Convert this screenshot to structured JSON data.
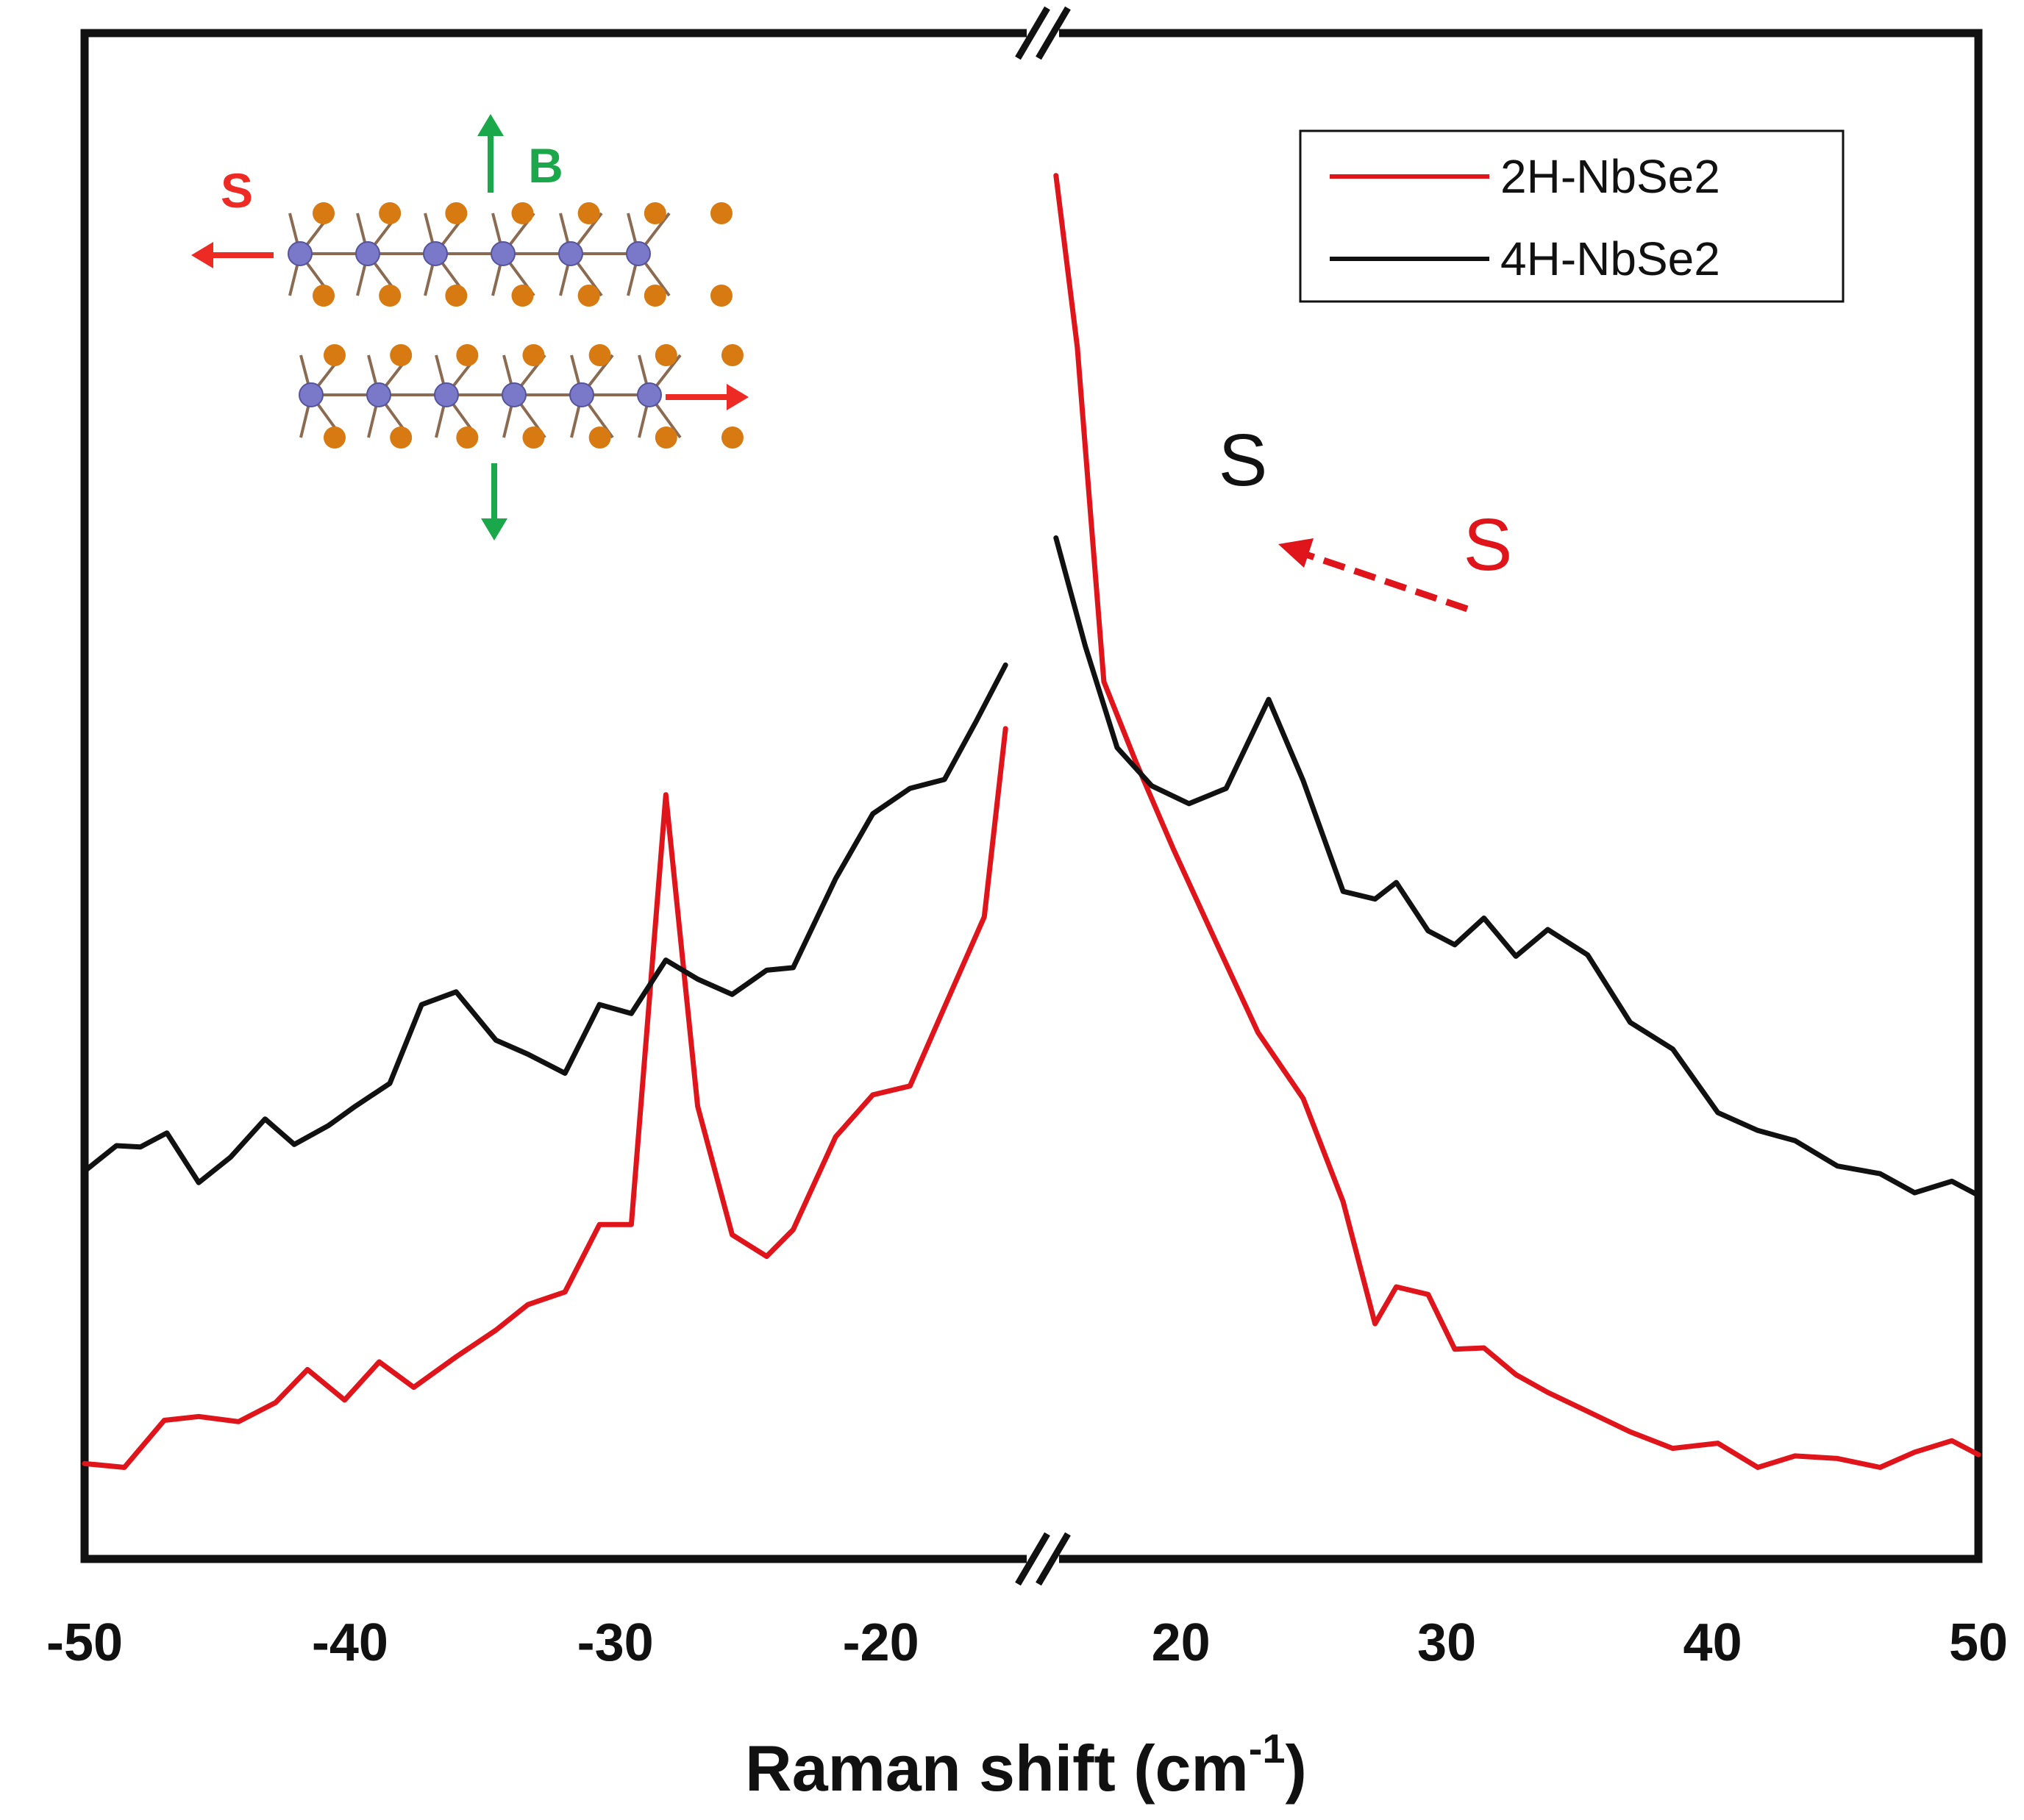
{
  "chart_data": {
    "type": "line",
    "xlabel": "Raman shift (cm",
    "xlabel_sup": "-1",
    "xlabel_close": ")",
    "xlim": [
      -50,
      50
    ],
    "axis_break": [
      -15,
      15
    ],
    "tick_labels": [
      "-50",
      "-40",
      "-30",
      "-20",
      "20",
      "30",
      "40",
      "50"
    ],
    "tick_values": [
      -50,
      -40,
      -30,
      -20,
      20,
      30,
      40,
      50
    ],
    "grid": false,
    "legend_position": "top-right",
    "y_ticks_shown": false,
    "series": [
      {
        "name": "2H-NbSe2",
        "color": "#e0141b",
        "left_x": [
          -50,
          -48.5,
          -47,
          -45.7,
          -44.2,
          -42.8,
          -41.6,
          -40.2,
          -38.9,
          -37.6,
          -36,
          -34.5,
          -33.3,
          -31.9,
          -30.6,
          -29.4,
          -28.1,
          -26.9,
          -25.6,
          -24.3,
          -23.3,
          -21.7,
          -20.3,
          -18.9,
          -17.6,
          -16.1,
          -15.3
        ],
        "left_y": [
          7.5,
          7.2,
          10.9,
          11.2,
          10.8,
          12.3,
          14.9,
          12.5,
          15.5,
          13.5,
          15.9,
          18,
          20,
          21,
          26.3,
          26.3,
          60.1,
          35.6,
          25.5,
          23.8,
          25.9,
          33.2,
          36.5,
          37.2,
          43.4,
          50.5,
          65.3
        ],
        "right_x": [
          15.3,
          16.1,
          17.1,
          18.3,
          19.7,
          21.3,
          22.9,
          24.6,
          26.1,
          27.3,
          28.1,
          29.3,
          30.3,
          31.4,
          32.6,
          33.8,
          35.3,
          36.9,
          38.5,
          40.2,
          41.7,
          43.1,
          44.7,
          46.3,
          47.6,
          49,
          50
        ],
        "right_y": [
          108.8,
          95.3,
          69,
          62.7,
          55.9,
          48.6,
          41.4,
          36.2,
          28.1,
          18.5,
          21.4,
          20.8,
          16.5,
          16.6,
          14.5,
          13.1,
          11.6,
          10,
          8.7,
          9.1,
          7.2,
          8.1,
          7.9,
          7.2,
          8.4,
          9.3,
          8.2
        ]
      },
      {
        "name": "4H-NbSe2",
        "color": "#111111",
        "left_x": [
          -50,
          -48.8,
          -47.9,
          -46.9,
          -45.7,
          -44.5,
          -43.2,
          -42.1,
          -40.8,
          -39.8,
          -38.5,
          -37.3,
          -36,
          -34.5,
          -33.3,
          -31.9,
          -30.6,
          -29.4,
          -28.1,
          -26.9,
          -25.6,
          -24.3,
          -23.3,
          -21.7,
          -20.3,
          -18.9,
          -17.6,
          -16.4,
          -15.3
        ],
        "left_y": [
          30.5,
          32.5,
          32.4,
          33.5,
          29.6,
          31.6,
          34.6,
          32.6,
          34.1,
          35.6,
          37.4,
          43.6,
          44.6,
          40.8,
          39.7,
          38.2,
          43.6,
          42.9,
          47.1,
          45.6,
          44.4,
          46.3,
          46.5,
          53.5,
          58.6,
          60.6,
          61.3,
          65.9,
          70.3
        ],
        "right_x": [
          15.3,
          16.4,
          17.6,
          18.9,
          20.3,
          21.7,
          23.3,
          24.6,
          26.1,
          27.3,
          28.1,
          29.3,
          30.3,
          31.4,
          32.6,
          33.8,
          35.3,
          36.9,
          38.5,
          40.2,
          41.7,
          43.1,
          44.7,
          46.3,
          47.6,
          49,
          50
        ],
        "right_y": [
          80.3,
          71.8,
          63.8,
          60.8,
          59.4,
          60.6,
          67.6,
          61.2,
          52.5,
          51.9,
          53.2,
          49.4,
          48.3,
          50.4,
          47.4,
          49.5,
          47.5,
          42.2,
          40.1,
          35.1,
          33.7,
          32.9,
          30.9,
          30.3,
          28.8,
          29.7,
          28.6
        ]
      }
    ],
    "annotations": [
      {
        "text": "S",
        "color": "#111111"
      },
      {
        "text": "S",
        "color": "#e0141b"
      }
    ],
    "inset": {
      "shear_label": "S",
      "breathing_label": "B",
      "shear_color": "#ee2a24",
      "breathing_color": "#1aa84a",
      "atom_nb_color": "#7a78c8",
      "atom_se_color": "#d87a12"
    }
  }
}
